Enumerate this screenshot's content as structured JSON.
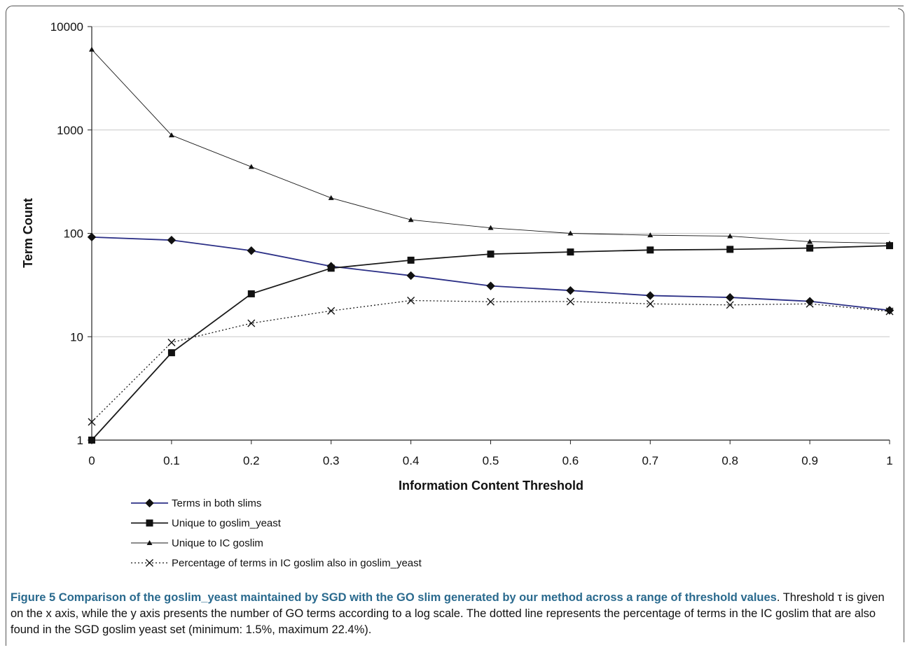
{
  "chart_data": {
    "type": "line",
    "title": "",
    "xlabel": "Information Content Threshold",
    "ylabel": "Term Count",
    "x": [
      0,
      0.1,
      0.2,
      0.3,
      0.4,
      0.5,
      0.6,
      0.7,
      0.8,
      0.9,
      1
    ],
    "x_tick_labels": [
      "0",
      "0.1",
      "0.2",
      "0.3",
      "0.4",
      "0.5",
      "0.6",
      "0.7",
      "0.8",
      "0.9",
      "1"
    ],
    "y_scale": "log",
    "ylim": [
      1,
      10000
    ],
    "y_tick_values": [
      1,
      10,
      100,
      1000,
      10000
    ],
    "y_tick_labels": [
      "1",
      "10",
      "100",
      "1000",
      "10000"
    ],
    "grid": "horizontal",
    "legend_position": "bottom",
    "series": [
      {
        "name": "Terms in both slims",
        "color": "#2b2f86",
        "marker": "diamond",
        "dash": "solid",
        "values": [
          92,
          86,
          68,
          48,
          39,
          31,
          28,
          25,
          24,
          22,
          18
        ]
      },
      {
        "name": "Unique to goslim_yeast",
        "color": "#1a1a1a",
        "marker": "square",
        "dash": "solid",
        "values": [
          1,
          7,
          26,
          46,
          55,
          63,
          66,
          69,
          70,
          72,
          76
        ]
      },
      {
        "name": "Unique to IC goslim",
        "color": "#1a1a1a",
        "marker": "triangle",
        "dash": "thin",
        "values": [
          6000,
          890,
          440,
          220,
          135,
          113,
          100,
          96,
          94,
          83,
          80
        ]
      },
      {
        "name": "Percentage of terms in IC goslim also in goslim_yeast",
        "color": "#1a1a1a",
        "marker": "x",
        "dash": "dotted",
        "values": [
          1.5,
          8.8,
          13.5,
          17.8,
          22.4,
          21.8,
          21.9,
          20.8,
          20.3,
          20.8,
          17.6
        ]
      }
    ]
  },
  "caption": {
    "label": "Figure 5",
    "title_before_sym": "Comparison of the goslim_yeast maintained by SGD with the GO slim generated by our method across a range of threshold values",
    "body_part1": ". Threshold ",
    "symbol": "τ",
    "body_part2": " is given on the x axis, while the y axis presents the number of GO terms according to a log scale. The dotted line represents the percentage of terms in the IC goslim that are also found in the SGD goslim yeast set (minimum: 1.5%, maximum 22.4%)."
  }
}
